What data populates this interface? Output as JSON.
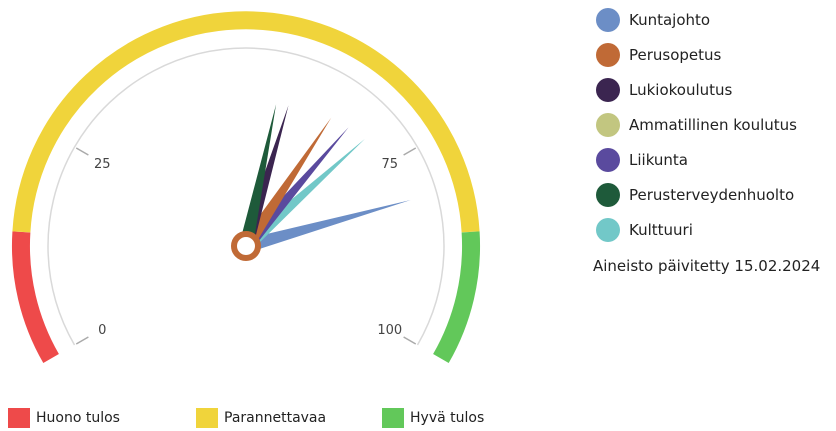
{
  "chart_data": {
    "type": "gauge",
    "scale": {
      "min": 0,
      "max": 100,
      "tick_labels": [
        "0",
        "25",
        "75",
        "100"
      ]
    },
    "bands": [
      {
        "label": "Huono tulos",
        "from": 0,
        "to": 14,
        "color": "#ee4a4a"
      },
      {
        "label": "Parannettavaa",
        "from": 14,
        "to": 86,
        "color": "#f0d43b"
      },
      {
        "label": "Hyvä tulos",
        "from": 86,
        "to": 100,
        "color": "#62c85a"
      }
    ],
    "series": [
      {
        "name": "Kuntajohto",
        "value": 81,
        "color": "#6c8ec6"
      },
      {
        "name": "Perusopetus",
        "value": 64,
        "color": "#c06a36"
      },
      {
        "name": "Lukiokoulutus",
        "value": 57,
        "color": "#3b2550"
      },
      {
        "name": "Ammatillinen koulutus",
        "value": null,
        "color": "#c2c680"
      },
      {
        "name": "Liikunta",
        "value": 67,
        "color": "#5a4a9e"
      },
      {
        "name": "Perusterveydenhuolto",
        "value": 55,
        "color": "#1e5a3a"
      },
      {
        "name": "Kulttuuri",
        "value": 70,
        "color": "#72c8c8"
      }
    ]
  },
  "footer": {
    "updated": "Aineisto päivitetty 15.02.2024"
  }
}
